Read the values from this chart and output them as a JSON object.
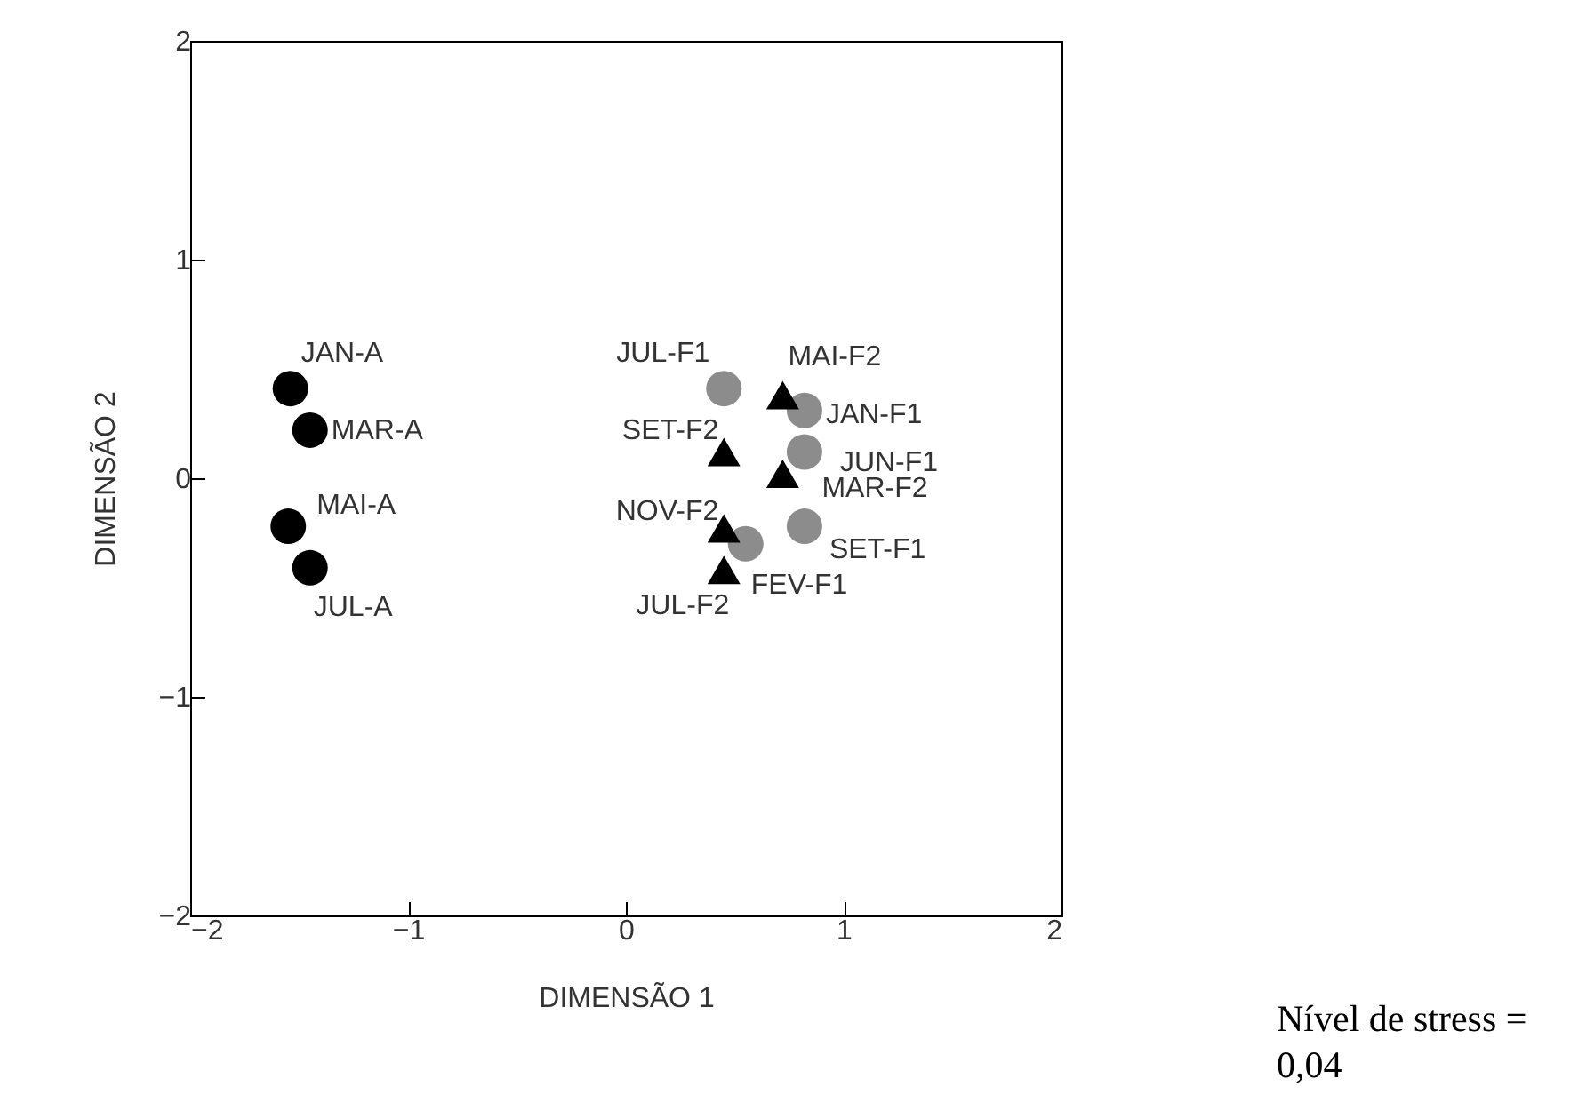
{
  "chart_data": {
    "type": "scatter",
    "xlabel": "DIMENSÃO 1",
    "ylabel": "DIMENSÃO 2",
    "xlim": [
      -2,
      2
    ],
    "ylim": [
      -2,
      2
    ],
    "xticks": [
      -2,
      -1,
      0,
      1,
      2
    ],
    "yticks": [
      -2,
      -1,
      0,
      1,
      2
    ],
    "grid": false,
    "series": [
      {
        "color": "#000000",
        "marker": "circle",
        "x": [
          -1.54,
          -1.45,
          -1.55,
          -1.45
        ],
        "values": [
          0.41,
          0.22,
          -0.22,
          -0.41
        ]
      },
      {
        "color": "#8c8c8c",
        "marker": "circle",
        "x": [
          0.45,
          0.82,
          0.82,
          0.82,
          0.55
        ],
        "values": [
          0.41,
          0.31,
          0.12,
          -0.22,
          -0.3
        ]
      },
      {
        "color": "#000000",
        "marker": "triangle",
        "x": [
          0.72,
          0.45,
          0.72,
          0.45,
          0.45
        ],
        "values": [
          0.38,
          0.12,
          0.02,
          -0.23,
          -0.42
        ]
      }
    ],
    "annotations": [
      {
        "text": "JAN-A",
        "x": -1.54,
        "y": 0.41
      },
      {
        "text": "MAR-A",
        "x": -1.45,
        "y": 0.22
      },
      {
        "text": "MAI-A",
        "x": -1.55,
        "y": -0.22
      },
      {
        "text": "JUL-A",
        "x": -1.45,
        "y": -0.41
      },
      {
        "text": "JUL-F1",
        "x": 0.45,
        "y": 0.41
      },
      {
        "text": "JAN-F1",
        "x": 0.82,
        "y": 0.31
      },
      {
        "text": "JUN-F1",
        "x": 0.82,
        "y": 0.12
      },
      {
        "text": "SET-F1",
        "x": 0.82,
        "y": -0.22
      },
      {
        "text": "FEV-F1",
        "x": 0.55,
        "y": -0.3
      },
      {
        "text": "MAI-F2",
        "x": 0.72,
        "y": 0.38
      },
      {
        "text": "SET-F2",
        "x": 0.45,
        "y": 0.12
      },
      {
        "text": "MAR-F2",
        "x": 0.72,
        "y": 0.02
      },
      {
        "text": "NOV-F2",
        "x": 0.45,
        "y": -0.23
      },
      {
        "text": "JUL-F2",
        "x": 0.45,
        "y": -0.42
      },
      "Nível de stress = 0,04"
    ]
  }
}
